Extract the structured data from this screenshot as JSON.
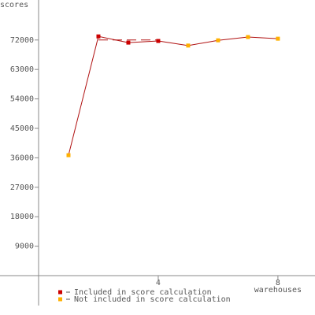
{
  "chart_data": {
    "type": "line",
    "y_label": "scores",
    "x_label": "warehouses",
    "x": [
      1,
      2,
      3,
      4,
      5,
      6,
      7,
      8
    ],
    "series": [
      {
        "name": "Included in score calculation",
        "color": "#cc0000",
        "values": [
          null,
          73100,
          71200,
          71700,
          null,
          null,
          null,
          null
        ]
      },
      {
        "name": "Not included in score calculation",
        "color": "#ffb000",
        "values": [
          36800,
          null,
          null,
          null,
          70300,
          71900,
          72900,
          72400
        ]
      }
    ],
    "line_color": "#b01010",
    "dashed_line": {
      "x": [
        2,
        4
      ],
      "values": [
        72000,
        72000
      ]
    },
    "xlim": [
      -1.29,
      9.24
    ],
    "ylim": [
      -12030,
      84220
    ],
    "xticks": [
      4,
      8
    ],
    "yticks": [
      9000,
      18000,
      27000,
      36000,
      45000,
      54000,
      63000,
      72000
    ]
  }
}
